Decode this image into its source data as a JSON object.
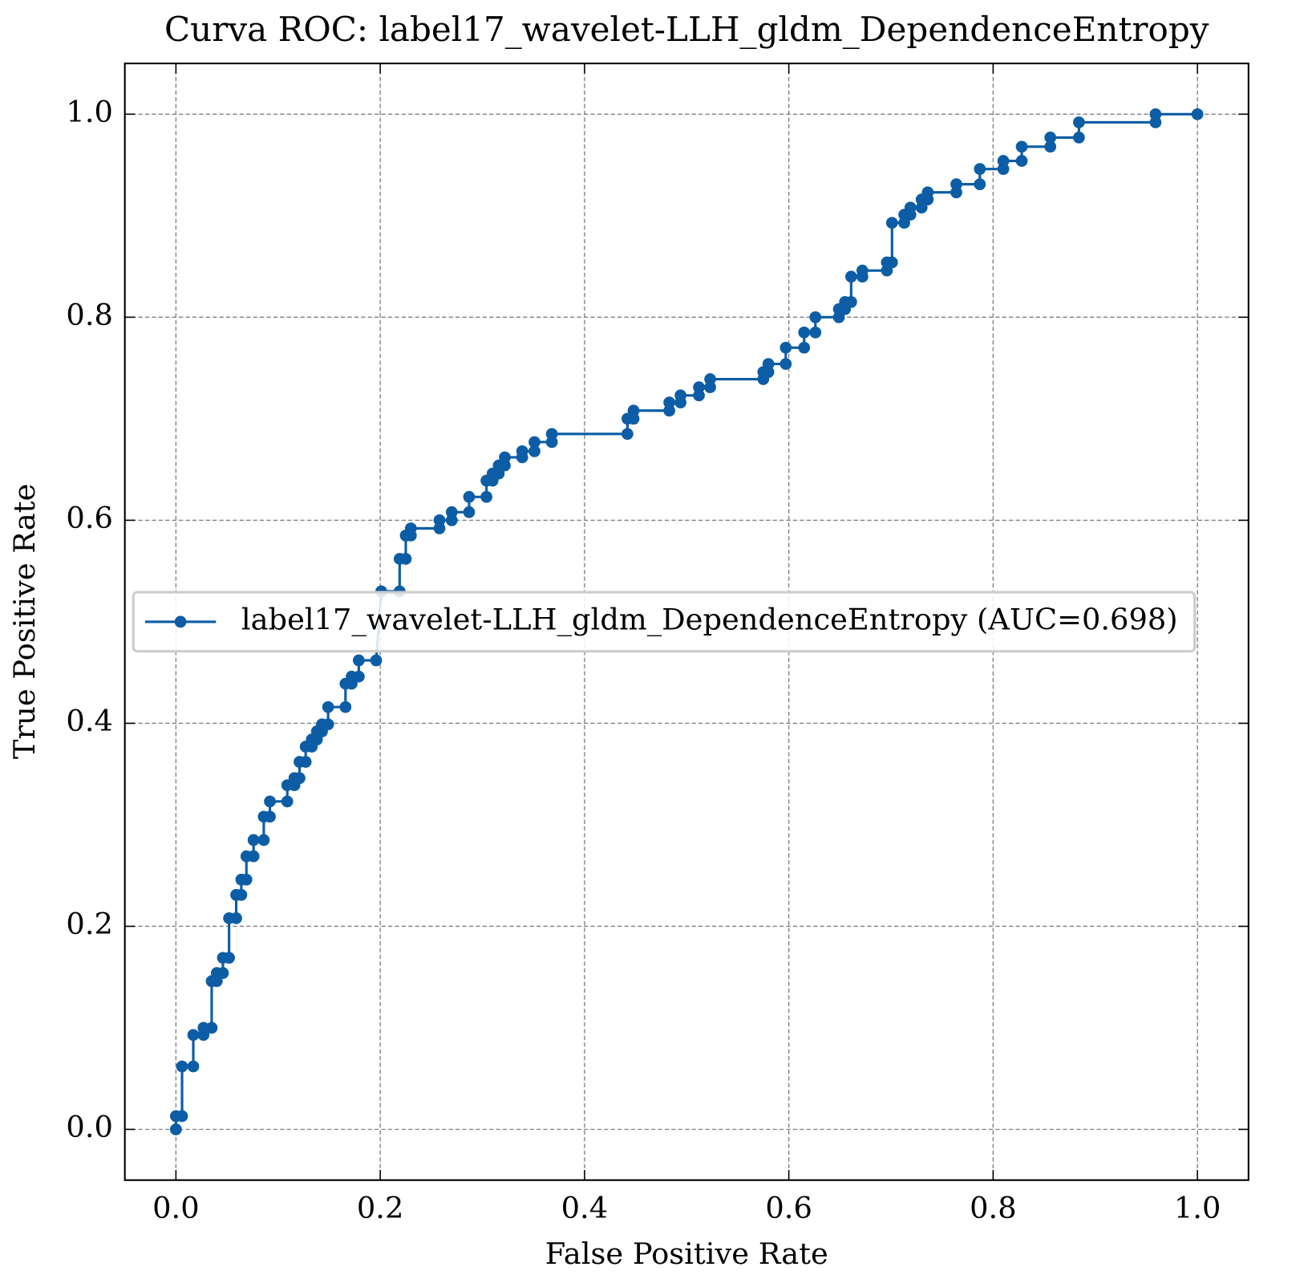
{
  "chart_data": {
    "type": "line",
    "title": "Curva ROC: label17_wavelet-LLH_gldm_DependenceEntropy",
    "xlabel": "False Positive Rate",
    "ylabel": "True Positive Rate",
    "xlim": [
      -0.05,
      1.05
    ],
    "ylim": [
      -0.05,
      1.05
    ],
    "xticks": [
      {
        "value": 0,
        "label": "0.0"
      },
      0.2,
      0.4,
      0.6,
      0.8,
      {
        "value": 1,
        "label": "1.0"
      }
    ],
    "yticks": [
      {
        "value": 0,
        "label": "0.0"
      },
      0.2,
      0.4,
      0.6,
      0.8,
      {
        "value": 1,
        "label": "1.0"
      }
    ],
    "grid": true,
    "legend": "center left",
    "x": [
      0,
      0,
      0.006,
      0.006,
      0.017,
      0.017,
      0.027,
      0.027,
      0.035,
      0.035,
      0.04,
      0.04,
      0.046,
      0.046,
      0.052,
      0.052,
      0.059,
      0.059,
      0.064,
      0.064,
      0.069,
      0.069,
      0.076,
      0.076,
      0.086,
      0.086,
      0.092,
      0.092,
      0.109,
      0.109,
      0.116,
      0.116,
      0.121,
      0.121,
      0.127,
      0.127,
      0.133,
      0.133,
      0.138,
      0.138,
      0.143,
      0.143,
      0.149,
      0.149,
      0.166,
      0.166,
      0.172,
      0.172,
      0.179,
      0.179,
      0.196,
      0.201,
      0.219,
      0.219,
      0.225,
      0.225,
      0.23,
      0.23,
      0.258,
      0.258,
      0.27,
      0.27,
      0.287,
      0.287,
      0.304,
      0.304,
      0.31,
      0.31,
      0.316,
      0.316,
      0.322,
      0.322,
      0.339,
      0.339,
      0.351,
      0.351,
      0.368,
      0.368,
      0.442,
      0.442,
      0.448,
      0.448,
      0.483,
      0.483,
      0.494,
      0.494,
      0.512,
      0.512,
      0.523,
      0.523,
      0.575,
      0.575,
      0.58,
      0.58,
      0.597,
      0.597,
      0.615,
      0.615,
      0.626,
      0.626,
      0.649,
      0.649,
      0.655,
      0.655,
      0.661,
      0.661,
      0.672,
      0.672,
      0.696,
      0.696,
      0.701,
      0.701,
      0.713,
      0.713,
      0.719,
      0.719,
      0.73,
      0.73,
      0.736,
      0.736,
      0.764,
      0.764,
      0.787,
      0.787,
      0.81,
      0.81,
      0.828,
      0.828,
      0.856,
      0.856,
      0.884,
      0.884,
      0.959,
      0.959,
      1
    ],
    "series": [
      {
        "name": "label17_wavelet-LLH_gldm_DependenceEntropy (AUC=0.698)",
        "color": "#0c5da5",
        "values": [
          0,
          0.013,
          0.013,
          0.062,
          0.062,
          0.093,
          0.093,
          0.1,
          0.1,
          0.146,
          0.146,
          0.154,
          0.154,
          0.169,
          0.169,
          0.208,
          0.208,
          0.231,
          0.231,
          0.246,
          0.246,
          0.269,
          0.269,
          0.285,
          0.285,
          0.308,
          0.308,
          0.323,
          0.323,
          0.339,
          0.339,
          0.346,
          0.346,
          0.362,
          0.362,
          0.377,
          0.377,
          0.384,
          0.384,
          0.392,
          0.392,
          0.399,
          0.399,
          0.416,
          0.416,
          0.439,
          0.439,
          0.446,
          0.446,
          0.462,
          0.462,
          0.53,
          0.53,
          0.562,
          0.562,
          0.585,
          0.585,
          0.592,
          0.592,
          0.6,
          0.6,
          0.608,
          0.608,
          0.623,
          0.623,
          0.639,
          0.639,
          0.646,
          0.646,
          0.654,
          0.654,
          0.662,
          0.662,
          0.668,
          0.668,
          0.677,
          0.677,
          0.685,
          0.685,
          0.7,
          0.7,
          0.708,
          0.708,
          0.716,
          0.716,
          0.723,
          0.723,
          0.731,
          0.731,
          0.739,
          0.739,
          0.746,
          0.746,
          0.754,
          0.754,
          0.77,
          0.77,
          0.785,
          0.785,
          0.8,
          0.8,
          0.808,
          0.808,
          0.815,
          0.815,
          0.84,
          0.84,
          0.846,
          0.846,
          0.854,
          0.854,
          0.893,
          0.893,
          0.901,
          0.901,
          0.908,
          0.908,
          0.916,
          0.916,
          0.923,
          0.923,
          0.931,
          0.931,
          0.946,
          0.946,
          0.954,
          0.954,
          0.968,
          0.968,
          0.977,
          0.977,
          0.992,
          0.992,
          1.0,
          1
        ]
      }
    ]
  }
}
